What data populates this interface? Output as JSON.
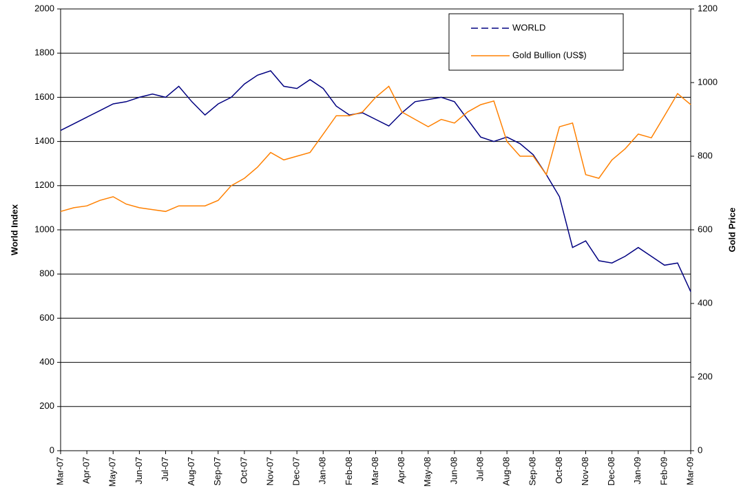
{
  "chart_data": {
    "type": "line",
    "categories": [
      "Mar-07",
      null,
      "Apr-07",
      null,
      "May-07",
      null,
      "Jun-07",
      null,
      "Jul-07",
      null,
      "Aug-07",
      null,
      "Sep-07",
      null,
      "Oct-07",
      null,
      "Nov-07",
      null,
      "Dec-07",
      null,
      "Jan-08",
      null,
      "Feb-08",
      null,
      "Mar-08",
      null,
      "Apr-08",
      null,
      "May-08",
      null,
      "Jun-08",
      null,
      "Jul-08",
      null,
      "Aug-08",
      null,
      "Sep-08",
      null,
      "Oct-08",
      null,
      "Nov-08",
      null,
      "Dec-08",
      null,
      "Jan-09",
      null,
      "Feb-09",
      null,
      "Mar-09"
    ],
    "series": [
      {
        "name": "WORLD",
        "color": "#000080",
        "axis": "y",
        "values": [
          1450,
          1480,
          1510,
          1540,
          1570,
          1580,
          1600,
          1615,
          1600,
          1650,
          1580,
          1520,
          1570,
          1600,
          1660,
          1700,
          1720,
          1650,
          1640,
          1680,
          1640,
          1560,
          1520,
          1530,
          1500,
          1470,
          1530,
          1580,
          1590,
          1600,
          1580,
          1500,
          1420,
          1400,
          1420,
          1390,
          1340,
          1250,
          1150,
          920,
          950,
          860,
          850,
          880,
          920,
          880,
          840,
          850,
          720
        ]
      },
      {
        "name": "Gold Bullion (US$)",
        "color": "#ff8000",
        "axis": "y2",
        "values": [
          650,
          660,
          665,
          680,
          690,
          670,
          660,
          655,
          650,
          665,
          665,
          665,
          680,
          720,
          740,
          770,
          810,
          790,
          800,
          810,
          860,
          910,
          910,
          920,
          960,
          990,
          920,
          900,
          880,
          900,
          890,
          920,
          940,
          950,
          840,
          800,
          800,
          750,
          880,
          890,
          750,
          740,
          790,
          820,
          860,
          850,
          910,
          970,
          940
        ]
      }
    ],
    "y_label": "World Index",
    "y2_label": "Gold Price",
    "ylim": [
      0,
      2000
    ],
    "yticks": [
      0,
      200,
      400,
      600,
      800,
      1000,
      1200,
      1400,
      1600,
      1800,
      2000
    ],
    "y2lim": [
      0,
      1200
    ],
    "y2ticks": [
      0,
      200,
      400,
      600,
      800,
      1000,
      1200
    ],
    "grid": true,
    "legend": "upper right"
  }
}
